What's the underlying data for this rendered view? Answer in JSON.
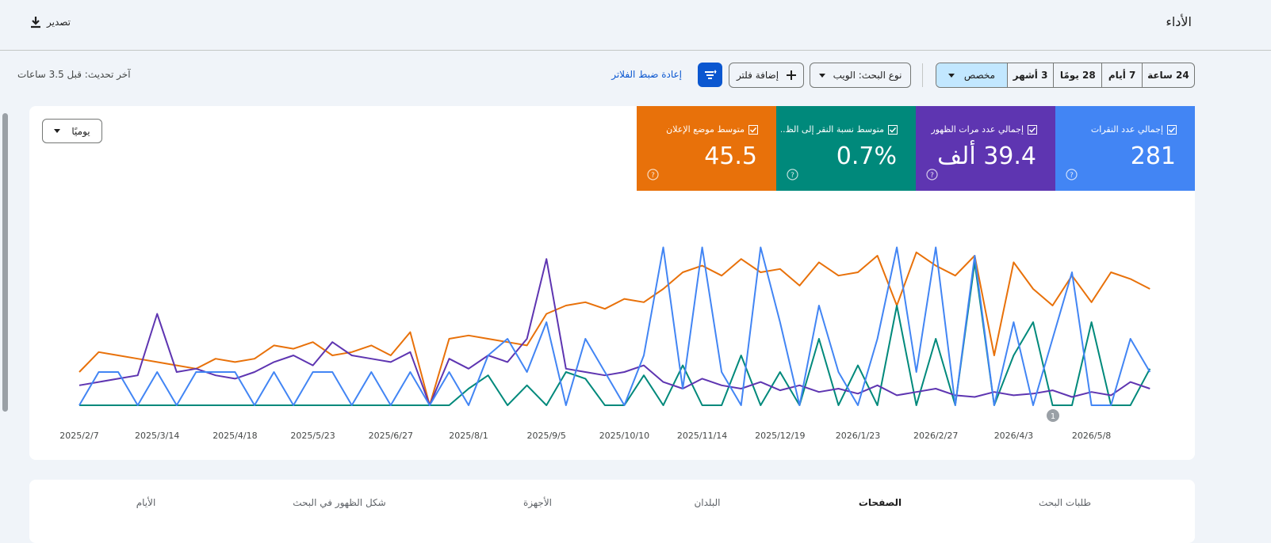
{
  "header": {
    "title": "الأداء",
    "export": "تصدير"
  },
  "filters": {
    "date_ranges": [
      "24 ساعة",
      "7 أيام",
      "28 يومًا",
      "3 أشهر",
      "مخصص"
    ],
    "search_type": "نوع البحث: الويب",
    "add_filter": "إضافة فلتر",
    "reset": "إعادة ضبط الفلاتر",
    "last_update": "آخر تحديث: قبل 3.5 ساعات"
  },
  "granularity": "يوميًا",
  "chart_data": {
    "type": "line",
    "categories": [
      "2025/2/7",
      null,
      null,
      null,
      "2025/3/14",
      null,
      null,
      null,
      "2025/4/18",
      null,
      null,
      null,
      "2025/5/23",
      null,
      null,
      null,
      "2025/6/27",
      null,
      null,
      null,
      "2025/8/1",
      null,
      null,
      null,
      "2025/9/5",
      null,
      null,
      null,
      "2025/10/10",
      null,
      null,
      null,
      "2025/11/14",
      null,
      null,
      null,
      "2025/12/19",
      null,
      null,
      null,
      "2026/1/23",
      null,
      null,
      null,
      "2026/2/27",
      null,
      null,
      null,
      "2026/4/3",
      null,
      null,
      null,
      "2026/5/8",
      null,
      null,
      null
    ],
    "ylim": [
      0,
      100
    ],
    "annotations": [
      "1"
    ],
    "series": [
      {
        "name": "إجمالي عدد النقرات",
        "total": "281",
        "color": "#4285f4",
        "values": [
          0,
          20,
          20,
          0,
          20,
          0,
          20,
          20,
          20,
          0,
          20,
          0,
          20,
          20,
          0,
          20,
          0,
          20,
          0,
          20,
          0,
          30,
          40,
          20,
          50,
          0,
          40,
          20,
          0,
          30,
          95,
          10,
          95,
          20,
          0,
          95,
          50,
          0,
          60,
          20,
          0,
          40,
          95,
          20,
          95,
          0,
          90,
          0,
          50,
          0,
          40,
          80,
          0,
          0,
          40,
          20
        ]
      },
      {
        "name": "إجمالي عدد مرات الظهور",
        "total": "39.4 ألف",
        "color": "#5e35b1",
        "values": [
          12,
          14,
          16,
          18,
          55,
          20,
          22,
          18,
          16,
          20,
          26,
          30,
          24,
          38,
          30,
          28,
          26,
          32,
          0,
          28,
          22,
          30,
          26,
          40,
          88,
          22,
          20,
          18,
          20,
          24,
          14,
          10,
          16,
          12,
          10,
          14,
          9,
          12,
          8,
          10,
          7,
          12,
          6,
          8,
          10,
          6,
          5,
          8,
          6,
          7,
          9,
          5,
          8,
          6,
          14,
          10
        ]
      },
      {
        "name": "متوسط نسبة النقر إلى الظ...",
        "total": "0.7%",
        "color": "#00897b",
        "values": [
          0,
          0,
          0,
          0,
          0,
          0,
          0,
          0,
          0,
          0,
          0,
          0,
          0,
          0,
          0,
          0,
          0,
          0,
          0,
          0,
          10,
          18,
          0,
          12,
          0,
          20,
          16,
          0,
          0,
          18,
          0,
          24,
          0,
          0,
          30,
          0,
          20,
          0,
          40,
          0,
          24,
          0,
          60,
          0,
          40,
          0,
          86,
          0,
          30,
          50,
          0,
          0,
          50,
          0,
          0,
          22
        ]
      },
      {
        "name": "متوسط موضع الإعلان",
        "total": "45.5",
        "color": "#e8710a",
        "values": [
          20,
          32,
          30,
          28,
          26,
          24,
          22,
          28,
          26,
          28,
          36,
          34,
          38,
          30,
          32,
          36,
          30,
          44,
          0,
          40,
          42,
          40,
          38,
          36,
          55,
          60,
          62,
          58,
          64,
          62,
          70,
          80,
          84,
          78,
          88,
          80,
          82,
          72,
          86,
          78,
          80,
          90,
          60,
          92,
          84,
          78,
          90,
          30,
          86,
          70,
          60,
          78,
          62,
          80,
          76,
          70
        ]
      }
    ]
  },
  "tabs": [
    "طلبات البحث",
    "الصفحات",
    "البلدان",
    "الأجهزة",
    "شكل الظهور في البحث",
    "الأيام"
  ]
}
